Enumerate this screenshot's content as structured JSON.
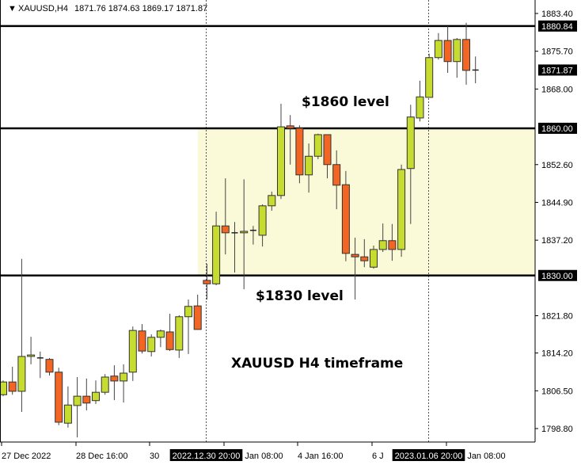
{
  "header": {
    "symbol_label": "XAUUSD,H4",
    "ohlc_label": "1871.76 1874.63 1869.17 1871.87"
  },
  "chart_data": {
    "type": "candlestick",
    "title": "XAUUSD,H4",
    "ylim": [
      1796.0,
      1886.0
    ],
    "colors": {
      "bull": "#c6dc2e",
      "bear": "#f26522",
      "zone": "#fafad8",
      "outline": "#333333"
    },
    "y_ticks": [
      "1883.40",
      "1875.70",
      "1868.00",
      "1852.60",
      "1844.90",
      "1837.20",
      "1821.80",
      "1814.20",
      "1806.50",
      "1798.80"
    ],
    "price_labels": [
      {
        "value": 1880.84,
        "label": "1880.84"
      },
      {
        "value": 1871.87,
        "label": "1871.87"
      },
      {
        "value": 1860.0,
        "label": "1860.00"
      },
      {
        "value": 1830.0,
        "label": "1830.00"
      }
    ],
    "horizontal_lines": [
      1880.84,
      1860.0,
      1830.0
    ],
    "zone": [
      1830.0,
      1860.0
    ],
    "x_labels": [
      {
        "index": 0,
        "label": "27 Dec 2022"
      },
      {
        "index": 8,
        "label": "28 Dec 16:00"
      },
      {
        "index": 16,
        "label": "30"
      },
      {
        "index": 24,
        "label": "Jan 08:00"
      },
      {
        "index": 32,
        "label": "4 Jan 16:00"
      },
      {
        "index": 40,
        "label": "6 J"
      },
      {
        "index": 48,
        "label": "Jan 08:00"
      }
    ],
    "crosshair_labels": [
      {
        "index": 21,
        "label": "2022.12.30 20:00"
      },
      {
        "index": 45,
        "label": "2023.01.06 20:00"
      }
    ],
    "annotations": [
      {
        "text": "$1860 level"
      },
      {
        "text": "$1830 level"
      },
      {
        "text": "XAUUSD H4 timeframe"
      }
    ],
    "candles": [
      [
        1805.7,
        1808.6,
        1805.4,
        1808.3
      ],
      [
        1808.3,
        1811.4,
        1805.7,
        1806.4
      ],
      [
        1806.4,
        1833.4,
        1802.2,
        1813.5
      ],
      [
        1813.5,
        1817.5,
        1811.9,
        1813.8
      ],
      [
        1813.2,
        1814.5,
        1809.1,
        1813.0
      ],
      [
        1812.9,
        1813.2,
        1809.6,
        1810.3
      ],
      [
        1810.3,
        1811.2,
        1799.5,
        1800.1
      ],
      [
        1799.9,
        1807.4,
        1799.0,
        1803.6
      ],
      [
        1803.5,
        1809.3,
        1797.0,
        1805.4
      ],
      [
        1805.4,
        1809.0,
        1802.5,
        1804.0
      ],
      [
        1804.5,
        1808.6,
        1803.8,
        1806.2
      ],
      [
        1806.2,
        1809.9,
        1805.7,
        1809.3
      ],
      [
        1809.5,
        1811.7,
        1804.6,
        1808.5
      ],
      [
        1808.5,
        1811.9,
        1804.1,
        1810.1
      ],
      [
        1810.3,
        1819.6,
        1808.5,
        1818.8
      ],
      [
        1818.7,
        1820.1,
        1814.1,
        1814.6
      ],
      [
        1814.5,
        1818.0,
        1813.5,
        1817.4
      ],
      [
        1817.4,
        1819.0,
        1815.4,
        1818.7
      ],
      [
        1818.5,
        1822.2,
        1814.6,
        1814.9
      ],
      [
        1814.8,
        1821.9,
        1813.2,
        1821.6
      ],
      [
        1821.6,
        1825.1,
        1814.0,
        1823.7
      ],
      [
        1823.8,
        1826.1,
        1819.0,
        1819.0
      ],
      [
        1829.0,
        1832.4,
        1825.1,
        1828.3
      ],
      [
        1828.3,
        1843.0,
        1828.0,
        1840.1
      ],
      [
        1840.1,
        1849.8,
        1834.3,
        1838.7
      ],
      [
        1838.7,
        1840.9,
        1830.6,
        1838.6
      ],
      [
        1838.7,
        1849.6,
        1827.2,
        1839.0
      ],
      [
        1839.2,
        1840.1,
        1836.3,
        1839.2
      ],
      [
        1838.2,
        1844.5,
        1835.9,
        1844.2
      ],
      [
        1844.2,
        1847.1,
        1843.2,
        1846.3
      ],
      [
        1846.3,
        1865.0,
        1845.6,
        1860.3
      ],
      [
        1860.5,
        1862.7,
        1852.6,
        1860.0
      ],
      [
        1860.0,
        1860.6,
        1848.8,
        1850.5
      ],
      [
        1850.5,
        1856.9,
        1846.9,
        1854.3
      ],
      [
        1854.3,
        1858.9,
        1853.7,
        1858.7
      ],
      [
        1858.7,
        1858.7,
        1849.8,
        1852.6
      ],
      [
        1852.6,
        1855.5,
        1843.5,
        1848.4
      ],
      [
        1848.5,
        1851.3,
        1832.9,
        1834.5
      ],
      [
        1834.3,
        1837.7,
        1825.1,
        1833.8
      ],
      [
        1833.8,
        1837.4,
        1831.7,
        1833.0
      ],
      [
        1831.7,
        1836.1,
        1831.4,
        1835.3
      ],
      [
        1835.3,
        1840.6,
        1834.8,
        1837.1
      ],
      [
        1837.1,
        1840.5,
        1833.0,
        1835.3
      ],
      [
        1835.3,
        1852.6,
        1833.8,
        1851.6
      ],
      [
        1851.8,
        1864.8,
        1840.5,
        1862.3
      ],
      [
        1862.1,
        1869.7,
        1861.4,
        1866.4
      ],
      [
        1866.3,
        1875.2,
        1866.3,
        1874.4
      ],
      [
        1874.4,
        1879.4,
        1874.0,
        1877.9
      ],
      [
        1877.9,
        1880.8,
        1871.3,
        1873.6
      ],
      [
        1873.6,
        1878.4,
        1870.3,
        1878.1
      ],
      [
        1878.1,
        1881.5,
        1868.9,
        1871.8
      ],
      [
        1871.76,
        1874.63,
        1869.17,
        1871.87
      ]
    ],
    "candle_format": [
      "open",
      "high",
      "low",
      "close"
    ]
  }
}
